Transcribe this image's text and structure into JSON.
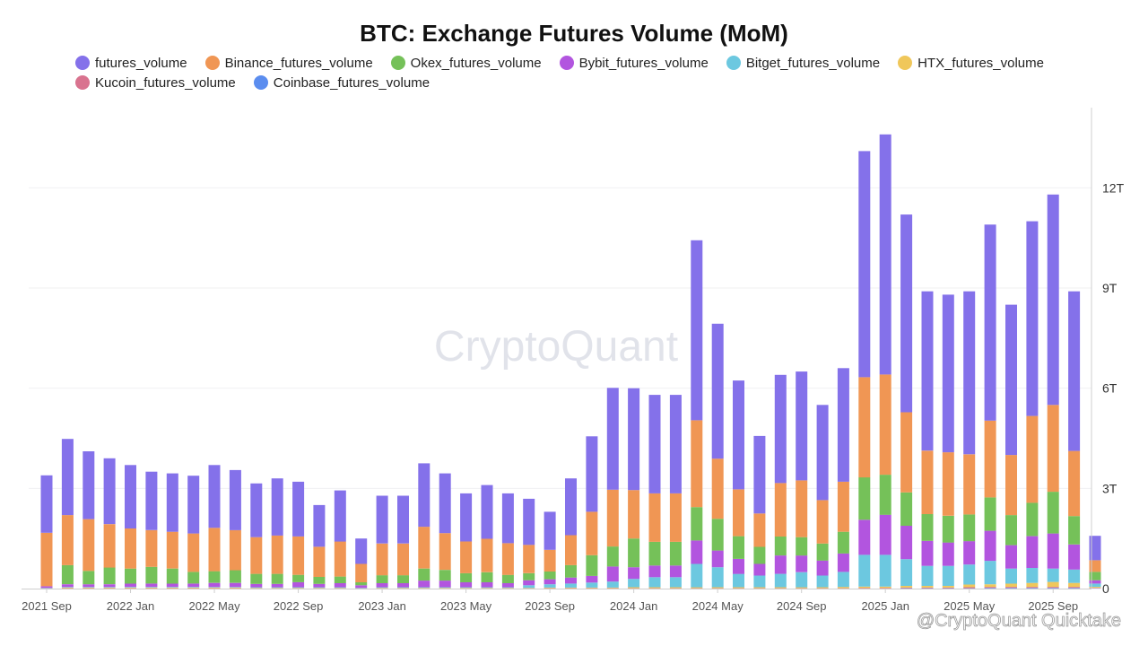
{
  "chart_data": {
    "type": "bar",
    "stacked": true,
    "title": "BTC: Exchange Futures Volume (MoM)",
    "xlabel": "",
    "ylabel": "",
    "ylim": [
      0,
      14.4
    ],
    "y_ticks": [
      0,
      3,
      6,
      9,
      12
    ],
    "y_tick_labels": [
      "0",
      "3T",
      "6T",
      "9T",
      "12T"
    ],
    "y_axis_position": "right",
    "grid": true,
    "legend_position": "top",
    "watermark": "CryptoQuant",
    "footer_text": "@CryptoQuant Quicktake",
    "categories": [
      "2021 Sep",
      "2021 Oct",
      "2021 Nov",
      "2021 Dec",
      "2022 Jan",
      "2022 Feb",
      "2022 Mar",
      "2022 Apr",
      "2022 May",
      "2022 Jun",
      "2022 Jul",
      "2022 Aug",
      "2022 Sep",
      "2022 Oct",
      "2022 Nov",
      "2022 Dec",
      "2023 Jan",
      "2023 Feb",
      "2023 Mar",
      "2023 Apr",
      "2023 May",
      "2023 Jun",
      "2023 Jul",
      "2023 Aug",
      "2023 Sep",
      "2023 Oct",
      "2023 Nov",
      "2023 Dec",
      "2024 Jan",
      "2024 Feb",
      "2024 Mar",
      "2024 Apr",
      "2024 May",
      "2024 Jun",
      "2024 Jul",
      "2024 Aug",
      "2024 Sep",
      "2024 Oct",
      "2024 Nov",
      "2024 Dec",
      "2025 Jan",
      "2025 Feb",
      "2025 Mar",
      "2025 Apr",
      "2025 May",
      "2025 Jun",
      "2025 Jul",
      "2025 Aug",
      "2025 Sep",
      "2025 Oct",
      "2025 Nov"
    ],
    "x_tick_labels": [
      "2021 Sep",
      "2022 Jan",
      "2022 May",
      "2022 Sep",
      "2023 Jan",
      "2023 May",
      "2023 Sep",
      "2024 Jan",
      "2024 May",
      "2024 Sep",
      "2025 Jan",
      "2025 May",
      "2025 Sep"
    ],
    "series": [
      {
        "name": "Coinbase_futures_volume",
        "color": "#5b8def",
        "values": [
          0,
          0,
          0,
          0,
          0,
          0,
          0,
          0,
          0,
          0,
          0,
          0,
          0,
          0,
          0,
          0,
          0,
          0,
          0,
          0,
          0,
          0,
          0,
          0,
          0,
          0,
          0,
          0,
          0,
          0,
          0,
          0,
          0,
          0,
          0,
          0,
          0,
          0,
          0,
          0,
          0,
          0.01,
          0.01,
          0.01,
          0.01,
          0.02,
          0.02,
          0.02,
          0.02,
          0.02,
          0.01
        ]
      },
      {
        "name": "Kucoin_futures_volume",
        "color": "#d9738f",
        "values": [
          0,
          0.01,
          0.01,
          0.01,
          0.01,
          0.01,
          0.01,
          0.01,
          0.01,
          0.01,
          0.01,
          0.01,
          0.01,
          0.01,
          0.01,
          0,
          0.01,
          0.01,
          0.01,
          0.01,
          0.01,
          0.01,
          0.01,
          0.01,
          0.01,
          0.01,
          0.01,
          0.01,
          0.01,
          0.01,
          0.01,
          0.01,
          0.01,
          0.01,
          0.01,
          0.01,
          0.01,
          0.01,
          0.01,
          0.02,
          0.02,
          0.02,
          0.02,
          0.02,
          0.03,
          0.03,
          0.03,
          0.03,
          0.03,
          0.03,
          0.01
        ]
      },
      {
        "name": "HTX_futures_volume",
        "color": "#f0c75a",
        "values": [
          0.01,
          0.02,
          0.02,
          0.02,
          0.02,
          0.02,
          0.02,
          0.02,
          0.02,
          0.02,
          0.01,
          0.01,
          0.01,
          0.01,
          0.01,
          0.01,
          0.01,
          0.01,
          0.01,
          0.01,
          0.01,
          0.01,
          0.01,
          0.01,
          0.02,
          0.02,
          0.02,
          0.02,
          0.03,
          0.03,
          0.03,
          0.03,
          0.03,
          0.03,
          0.03,
          0.03,
          0.03,
          0.03,
          0.04,
          0.04,
          0.04,
          0.05,
          0.05,
          0.05,
          0.08,
          0.08,
          0.1,
          0.12,
          0.15,
          0.12,
          0.03
        ]
      },
      {
        "name": "Bitget_futures_volume",
        "color": "#6cc8e0",
        "values": [
          0.01,
          0.02,
          0.02,
          0.02,
          0.02,
          0.02,
          0.02,
          0.02,
          0.02,
          0.02,
          0.02,
          0.02,
          0.02,
          0.02,
          0.02,
          0.01,
          0.02,
          0.02,
          0.02,
          0.02,
          0.02,
          0.02,
          0.02,
          0.08,
          0.1,
          0.12,
          0.15,
          0.18,
          0.25,
          0.3,
          0.3,
          0.7,
          0.6,
          0.4,
          0.35,
          0.4,
          0.45,
          0.35,
          0.45,
          0.95,
          0.95,
          0.8,
          0.6,
          0.6,
          0.6,
          0.7,
          0.45,
          0.45,
          0.4,
          0.4,
          0.1
        ]
      },
      {
        "name": "Bybit_futures_volume",
        "color": "#b255df",
        "values": [
          0.05,
          0.08,
          0.08,
          0.08,
          0.1,
          0.1,
          0.1,
          0.1,
          0.12,
          0.12,
          0.1,
          0.1,
          0.15,
          0.1,
          0.12,
          0.08,
          0.12,
          0.12,
          0.2,
          0.2,
          0.15,
          0.15,
          0.12,
          0.15,
          0.15,
          0.18,
          0.2,
          0.45,
          0.35,
          0.35,
          0.35,
          0.7,
          0.5,
          0.45,
          0.35,
          0.55,
          0.5,
          0.45,
          0.55,
          1.05,
          1.2,
          1.0,
          0.75,
          0.7,
          0.7,
          0.9,
          0.7,
          0.95,
          1.05,
          0.75,
          0.1
        ]
      },
      {
        "name": "Okex_futures_volume",
        "color": "#75c159",
        "values": [
          0,
          0.57,
          0.4,
          0.5,
          0.45,
          0.5,
          0.45,
          0.35,
          0.35,
          0.38,
          0.3,
          0.3,
          0.22,
          0.21,
          0.2,
          0.09,
          0.24,
          0.24,
          0.36,
          0.32,
          0.27,
          0.3,
          0.25,
          0.21,
          0.23,
          0.37,
          0.62,
          0.6,
          0.86,
          0.71,
          0.71,
          1.0,
          0.95,
          0.68,
          0.51,
          0.57,
          0.55,
          0.51,
          0.65,
          1.27,
          1.2,
          1.0,
          0.8,
          0.8,
          0.8,
          1.0,
          0.9,
          1.0,
          1.25,
          0.85,
          0.25
        ]
      },
      {
        "name": "Binance_futures_volume",
        "color": "#f09654",
        "values": [
          1.6,
          1.5,
          1.55,
          1.3,
          1.2,
          1.1,
          1.1,
          1.15,
          1.3,
          1.2,
          1.1,
          1.15,
          1.15,
          0.9,
          1.05,
          0.55,
          0.95,
          0.95,
          1.25,
          1.1,
          0.95,
          1.0,
          0.95,
          0.85,
          0.65,
          0.9,
          1.3,
          1.7,
          1.45,
          1.45,
          1.45,
          2.6,
          1.8,
          1.4,
          1.0,
          1.6,
          1.7,
          1.3,
          1.5,
          3.0,
          3.0,
          2.4,
          1.9,
          1.9,
          1.8,
          2.3,
          1.8,
          2.6,
          2.6,
          1.95,
          0.35
        ]
      },
      {
        "name": "futures_volume",
        "color": "#8471ea",
        "values": [
          1.72,
          2.28,
          2.03,
          1.97,
          1.9,
          1.75,
          1.75,
          1.73,
          1.88,
          1.8,
          1.61,
          1.71,
          1.64,
          1.25,
          1.53,
          0.76,
          1.43,
          1.43,
          1.9,
          1.79,
          1.44,
          1.61,
          1.49,
          1.38,
          1.14,
          1.7,
          2.26,
          3.05,
          3.05,
          2.95,
          2.95,
          5.39,
          4.04,
          3.26,
          2.32,
          3.24,
          3.26,
          2.85,
          3.4,
          6.77,
          7.19,
          5.92,
          4.77,
          4.72,
          4.88,
          5.87,
          4.5,
          5.83,
          6.3,
          4.78,
          0.73
        ]
      }
    ]
  }
}
